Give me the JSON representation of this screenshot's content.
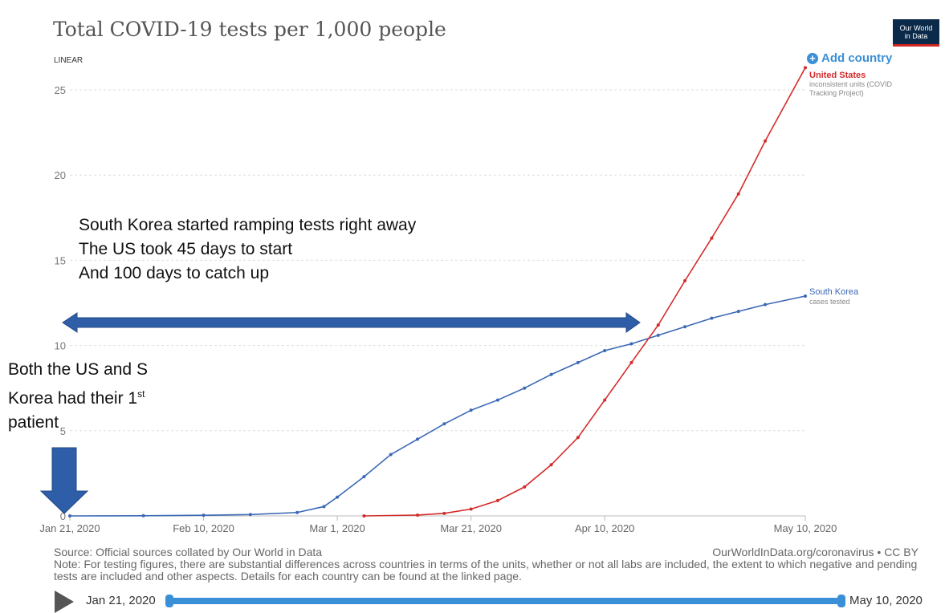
{
  "header": {
    "title": "Total COVID-19 tests per 1,000 people",
    "logo_line1": "Our World",
    "logo_line2": "in Data",
    "add_country": "Add country",
    "scale_label": "LINEAR"
  },
  "chart_data": {
    "type": "line",
    "title": "Total COVID-19 tests per 1,000 people",
    "x_axis": {
      "type": "date",
      "range": [
        "2020-01-21",
        "2020-05-10"
      ],
      "tick_labels": [
        "Jan 21, 2020",
        "Feb 10, 2020",
        "Mar 1, 2020",
        "Mar 21, 2020",
        "Apr 10, 2020",
        "May 10, 2020"
      ],
      "tick_dates": [
        "2020-01-21",
        "2020-02-10",
        "2020-03-01",
        "2020-03-21",
        "2020-04-10",
        "2020-05-10"
      ]
    },
    "y_axis": {
      "range": [
        0,
        26
      ],
      "ticks": [
        0,
        5,
        10,
        15,
        20,
        25
      ],
      "grid": true,
      "scale": "linear"
    },
    "series": [
      {
        "name": "South Korea",
        "sublabel": "cases tested",
        "color": "#3c68b5",
        "points": [
          [
            "2020-01-21",
            0.0
          ],
          [
            "2020-02-01",
            0.01
          ],
          [
            "2020-02-10",
            0.04
          ],
          [
            "2020-02-17",
            0.08
          ],
          [
            "2020-02-24",
            0.2
          ],
          [
            "2020-02-28",
            0.55
          ],
          [
            "2020-03-01",
            1.1
          ],
          [
            "2020-03-05",
            2.3
          ],
          [
            "2020-03-09",
            3.6
          ],
          [
            "2020-03-13",
            4.5
          ],
          [
            "2020-03-17",
            5.4
          ],
          [
            "2020-03-21",
            6.2
          ],
          [
            "2020-03-25",
            6.8
          ],
          [
            "2020-03-29",
            7.5
          ],
          [
            "2020-04-02",
            8.3
          ],
          [
            "2020-04-06",
            9.0
          ],
          [
            "2020-04-10",
            9.7
          ],
          [
            "2020-04-14",
            10.1
          ],
          [
            "2020-04-18",
            10.6
          ],
          [
            "2020-04-22",
            11.1
          ],
          [
            "2020-04-26",
            11.6
          ],
          [
            "2020-04-30",
            12.0
          ],
          [
            "2020-05-04",
            12.4
          ],
          [
            "2020-05-10",
            12.9
          ]
        ]
      },
      {
        "name": "United States",
        "sublabel": "inconsistent units (COVID Tracking Project)",
        "color": "#d42b2b",
        "points": [
          [
            "2020-03-05",
            0.0
          ],
          [
            "2020-03-13",
            0.05
          ],
          [
            "2020-03-17",
            0.15
          ],
          [
            "2020-03-21",
            0.4
          ],
          [
            "2020-03-25",
            0.9
          ],
          [
            "2020-03-29",
            1.7
          ],
          [
            "2020-04-02",
            3.0
          ],
          [
            "2020-04-06",
            4.6
          ],
          [
            "2020-04-10",
            6.8
          ],
          [
            "2020-04-14",
            9.0
          ],
          [
            "2020-04-18",
            11.2
          ],
          [
            "2020-04-22",
            13.8
          ],
          [
            "2020-04-26",
            16.3
          ],
          [
            "2020-04-30",
            18.9
          ],
          [
            "2020-05-04",
            22.0
          ],
          [
            "2020-05-10",
            26.3
          ]
        ]
      }
    ]
  },
  "annotations": {
    "main_line1": "South Korea started ramping tests right away",
    "main_line2": "The US took 45 days to start",
    "main_line3": "And 100 days to catch up",
    "first_line1": "Both the US and S",
    "first_line2_pre": "Korea had their 1",
    "first_line2_sup": "st",
    "first_line3": "patient",
    "arrow_color": "#2e5ea8"
  },
  "footer": {
    "source": "Source: Official sources collated by Our World in Data",
    "site": "OurWorldInData.org/coronavirus • CC BY",
    "note": "Note: For testing figures, there are substantial differences across countries in terms of the units, whether or not all labs are included, the extent to which negative and pending tests are included and other aspects. Details for each country can be found at the linked page."
  },
  "timeline": {
    "start": "Jan 21, 2020",
    "end": "May 10, 2020"
  }
}
